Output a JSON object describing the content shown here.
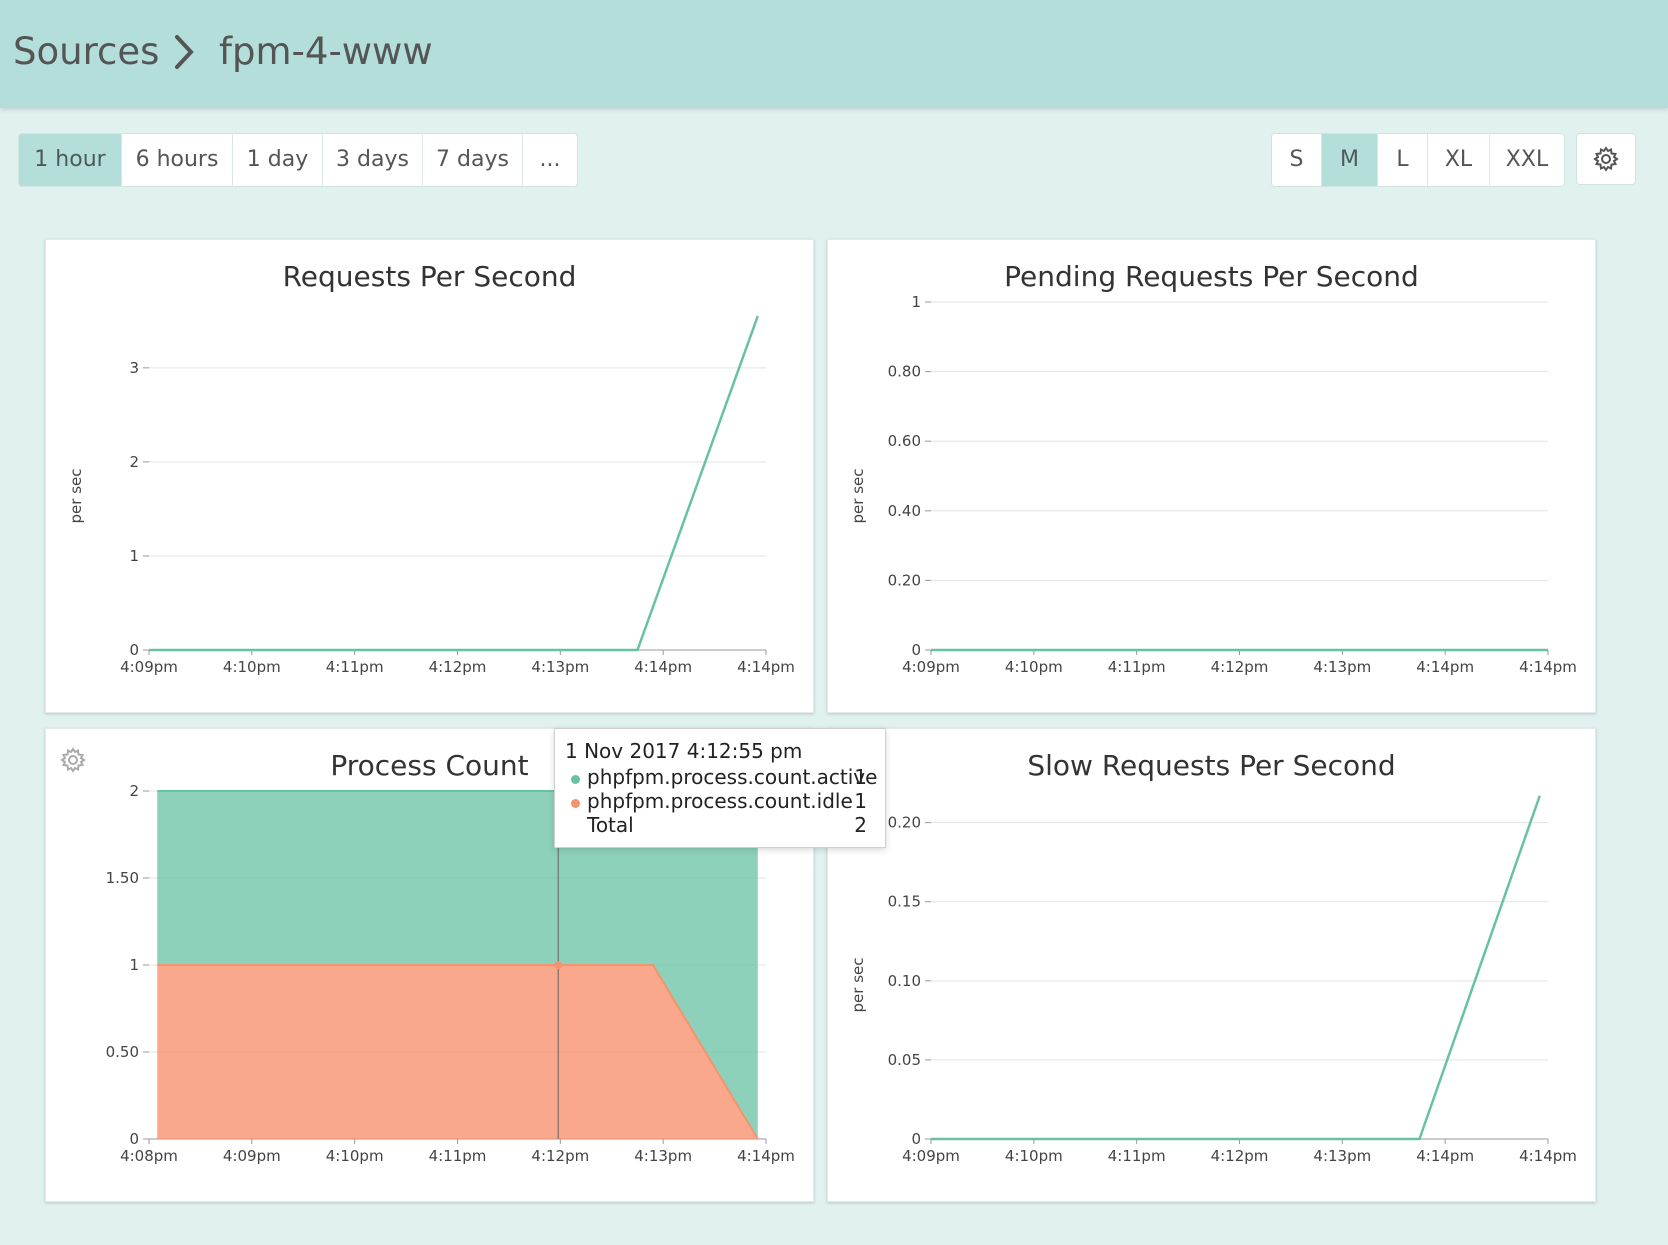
{
  "breadcrumb": {
    "root": "Sources",
    "current": "fpm-4-www"
  },
  "time_ranges": [
    "1 hour",
    "6 hours",
    "1 day",
    "3 days",
    "7 days",
    "..."
  ],
  "time_range_selected": "1 hour",
  "sizes": [
    "S",
    "M",
    "L",
    "XL",
    "XXL"
  ],
  "size_selected": "M",
  "icons": {
    "separator": "chevron-right-icon",
    "settings": "gear-icon"
  },
  "colors": {
    "active": "#67c2a3",
    "idle": "#f7926e",
    "header": "#b3deda",
    "background": "#e0f1f0"
  },
  "tooltip": {
    "time": "1 Nov 2017 4:12:55 pm",
    "rows": [
      {
        "name": "phpfpm.process.count.active",
        "value": "1"
      },
      {
        "name": "phpfpm.process.count.idle",
        "value": "1"
      }
    ],
    "total_label": "Total",
    "total_value": "2"
  },
  "chart_data": [
    {
      "type": "line",
      "title": "Requests Per Second",
      "ylabel": "per sec",
      "xlabel": "",
      "x_ticks": [
        "4:09pm",
        "4:10pm",
        "4:11pm",
        "4:12pm",
        "4:13pm",
        "4:14pm",
        "4:14pm"
      ],
      "y_ticks": [
        "0",
        "1",
        "2",
        "3"
      ],
      "ylim": [
        0,
        3.7
      ],
      "grid": true,
      "series": [
        {
          "x": [
            0,
            4.75,
            5.92
          ],
          "values": [
            0,
            0,
            3.55
          ]
        }
      ]
    },
    {
      "type": "line",
      "title": "Pending Requests Per Second",
      "ylabel": "per sec",
      "xlabel": "",
      "x_ticks": [
        "4:09pm",
        "4:10pm",
        "4:11pm",
        "4:12pm",
        "4:13pm",
        "4:14pm",
        "4:14pm"
      ],
      "y_ticks": [
        "0",
        "0.20",
        "0.40",
        "0.60",
        "0.80",
        "1"
      ],
      "ylim": [
        0,
        1
      ],
      "grid": true,
      "series": [
        {
          "x": [
            0,
            6
          ],
          "values": [
            0,
            0
          ]
        }
      ]
    },
    {
      "type": "area",
      "stacked": true,
      "title": "Process Count",
      "ylabel": "",
      "xlabel": "",
      "x_ticks": [
        "4:08pm",
        "4:09pm",
        "4:10pm",
        "4:11pm",
        "4:12pm",
        "4:13pm",
        "4:14pm"
      ],
      "y_ticks": [
        "0",
        "0.50",
        "1",
        "1.50",
        "2"
      ],
      "ylim": [
        0,
        2
      ],
      "grid": true,
      "series": [
        {
          "name": "phpfpm.process.count.idle",
          "x": [
            0.08,
            4.9,
            4.9,
            5.92
          ],
          "values": [
            1,
            1,
            1,
            0
          ]
        },
        {
          "name": "phpfpm.process.count.active",
          "x": [
            0.08,
            4.9,
            4.9,
            5.92
          ],
          "values": [
            1,
            1,
            1,
            2
          ]
        }
      ],
      "hover_x": 3.98
    },
    {
      "type": "line",
      "title": "Slow Requests Per Second",
      "ylabel": "per sec",
      "xlabel": "",
      "x_ticks": [
        "4:09pm",
        "4:10pm",
        "4:11pm",
        "4:12pm",
        "4:13pm",
        "4:14pm",
        "4:14pm"
      ],
      "y_ticks": [
        "0",
        "0.05",
        "0.10",
        "0.15",
        "0.20"
      ],
      "ylim": [
        0,
        0.22
      ],
      "grid": true,
      "series": [
        {
          "x": [
            0,
            4.75,
            5.92
          ],
          "values": [
            0,
            0,
            0.217
          ]
        }
      ]
    }
  ]
}
